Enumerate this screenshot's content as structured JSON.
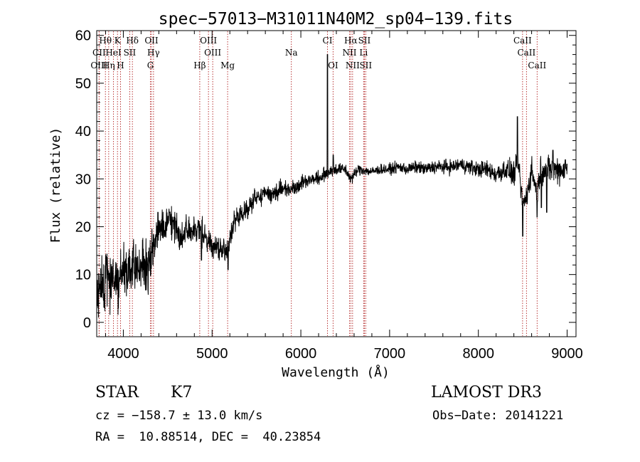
{
  "chart_data": {
    "type": "line",
    "title": "spec−57013−M31011N40M2_sp04−139.fits",
    "xlabel": "Wavelength (Å)",
    "ylabel": "Flux (relative)",
    "xlim": [
      3700,
      9100
    ],
    "ylim": [
      -3,
      61
    ],
    "xticks": [
      4000,
      5000,
      6000,
      7000,
      8000,
      9000
    ],
    "yticks": [
      0,
      10,
      20,
      30,
      40,
      50,
      60
    ],
    "line_color": "#000000",
    "marker_color": "#b22222",
    "spectrum_anchors": [
      [
        3700,
        3
      ],
      [
        3750,
        8
      ],
      [
        3800,
        9
      ],
      [
        3850,
        9
      ],
      [
        3900,
        10
      ],
      [
        3950,
        9
      ],
      [
        4000,
        10
      ],
      [
        4050,
        10
      ],
      [
        4100,
        11
      ],
      [
        4150,
        11
      ],
      [
        4200,
        12
      ],
      [
        4250,
        11
      ],
      [
        4300,
        12
      ],
      [
        4350,
        18
      ],
      [
        4400,
        19
      ],
      [
        4450,
        20
      ],
      [
        4500,
        21
      ],
      [
        4550,
        21
      ],
      [
        4600,
        20
      ],
      [
        4650,
        17
      ],
      [
        4700,
        20
      ],
      [
        4750,
        19
      ],
      [
        4800,
        19
      ],
      [
        4850,
        19
      ],
      [
        4900,
        19
      ],
      [
        4950,
        17
      ],
      [
        5000,
        16
      ],
      [
        5050,
        16
      ],
      [
        5100,
        15
      ],
      [
        5150,
        15
      ],
      [
        5200,
        17
      ],
      [
        5250,
        21
      ],
      [
        5300,
        22
      ],
      [
        5400,
        24
      ],
      [
        5500,
        26
      ],
      [
        5600,
        27
      ],
      [
        5700,
        27
      ],
      [
        5800,
        28
      ],
      [
        5900,
        28
      ],
      [
        6000,
        29
      ],
      [
        6100,
        30
      ],
      [
        6200,
        30
      ],
      [
        6280,
        31
      ],
      [
        6350,
        32
      ],
      [
        6400,
        32
      ],
      [
        6500,
        32
      ],
      [
        6563,
        30
      ],
      [
        6650,
        32
      ],
      [
        6800,
        31.5
      ],
      [
        6900,
        32
      ],
      [
        7000,
        32
      ],
      [
        7100,
        32.5
      ],
      [
        7200,
        32
      ],
      [
        7300,
        32.5
      ],
      [
        7400,
        32
      ],
      [
        7500,
        32.5
      ],
      [
        7600,
        32.5
      ],
      [
        7700,
        32.5
      ],
      [
        7800,
        33
      ],
      [
        7900,
        32.5
      ],
      [
        8000,
        32
      ],
      [
        8100,
        32
      ],
      [
        8200,
        31
      ],
      [
        8300,
        32
      ],
      [
        8400,
        31
      ],
      [
        8450,
        33
      ],
      [
        8498,
        25
      ],
      [
        8542,
        26
      ],
      [
        8600,
        32
      ],
      [
        8662,
        27
      ],
      [
        8700,
        32
      ],
      [
        8800,
        32
      ],
      [
        8900,
        32
      ],
      [
        9000,
        32
      ]
    ],
    "spectrum_spikes": [
      [
        4390,
        23
      ],
      [
        4520,
        23
      ],
      [
        4570,
        22
      ],
      [
        4880,
        13
      ],
      [
        5180,
        11
      ],
      [
        6300,
        56
      ],
      [
        6365,
        35
      ],
      [
        8440,
        43
      ],
      [
        8500,
        18
      ],
      [
        8560,
        28
      ],
      [
        8661,
        22
      ],
      [
        8710,
        24
      ],
      [
        8770,
        23
      ],
      [
        8840,
        36
      ],
      [
        8980,
        34
      ]
    ],
    "spectrum_noise": [
      [
        3700,
        7
      ],
      [
        4300,
        5
      ],
      [
        4400,
        3.5
      ],
      [
        5100,
        2.5
      ],
      [
        6000,
        1.6
      ],
      [
        6800,
        1.0
      ],
      [
        8000,
        1.6
      ],
      [
        8400,
        2.5
      ],
      [
        9000,
        3
      ]
    ],
    "lines": [
      {
        "label": "Hθ",
        "wavelength": 3798,
        "row": 1
      },
      {
        "label": "K",
        "wavelength": 3934,
        "row": 1
      },
      {
        "label": "Hδ",
        "wavelength": 4102,
        "row": 1
      },
      {
        "label": "OII",
        "wavelength": 4317,
        "row": 1
      },
      {
        "label": "OIII",
        "wavelength": 4959,
        "row": 1
      },
      {
        "label": "CI",
        "wavelength": 6300,
        "row": 1
      },
      {
        "label": "Hα",
        "wavelength": 6563,
        "row": 1
      },
      {
        "label": "SII",
        "wavelength": 6716,
        "row": 1
      },
      {
        "label": "CaII",
        "wavelength": 8498,
        "row": 1
      },
      {
        "label": "CII",
        "wavelength": 3727,
        "row": 2
      },
      {
        "label": "HeI",
        "wavelength": 3889,
        "row": 2
      },
      {
        "label": "SII",
        "wavelength": 4072,
        "row": 2
      },
      {
        "label": "Hγ",
        "wavelength": 4340,
        "row": 2
      },
      {
        "label": "OIII",
        "wavelength": 5007,
        "row": 2
      },
      {
        "label": "Na",
        "wavelength": 5893,
        "row": 2
      },
      {
        "label": "NII",
        "wavelength": 6548,
        "row": 2
      },
      {
        "label": "Li",
        "wavelength": 6707,
        "row": 2
      },
      {
        "label": "CaII",
        "wavelength": 8542,
        "row": 2
      },
      {
        "label": "OIII",
        "wavelength": 3727,
        "row": 3
      },
      {
        "label": "Hη",
        "wavelength": 3835,
        "row": 3
      },
      {
        "label": "H",
        "wavelength": 3968,
        "row": 3
      },
      {
        "label": "G",
        "wavelength": 4305,
        "row": 3
      },
      {
        "label": "Hβ",
        "wavelength": 4861,
        "row": 3
      },
      {
        "label": "Mg",
        "wavelength": 5175,
        "row": 3
      },
      {
        "label": "OI",
        "wavelength": 6363,
        "row": 3
      },
      {
        "label": "NII",
        "wavelength": 6583,
        "row": 3
      },
      {
        "label": "SII",
        "wavelength": 6731,
        "row": 3
      },
      {
        "label": "CaII",
        "wavelength": 8662,
        "row": 3
      }
    ]
  },
  "info": {
    "object_class": "STAR",
    "subclass": "K7",
    "survey": "LAMOST DR3",
    "redshift_line": "cz = −158.7 ± 13.0 km/s",
    "obs_date_line": "Obs−Date: 20141221",
    "coords_line": "RA =  10.88514, DEC =  40.23854"
  }
}
